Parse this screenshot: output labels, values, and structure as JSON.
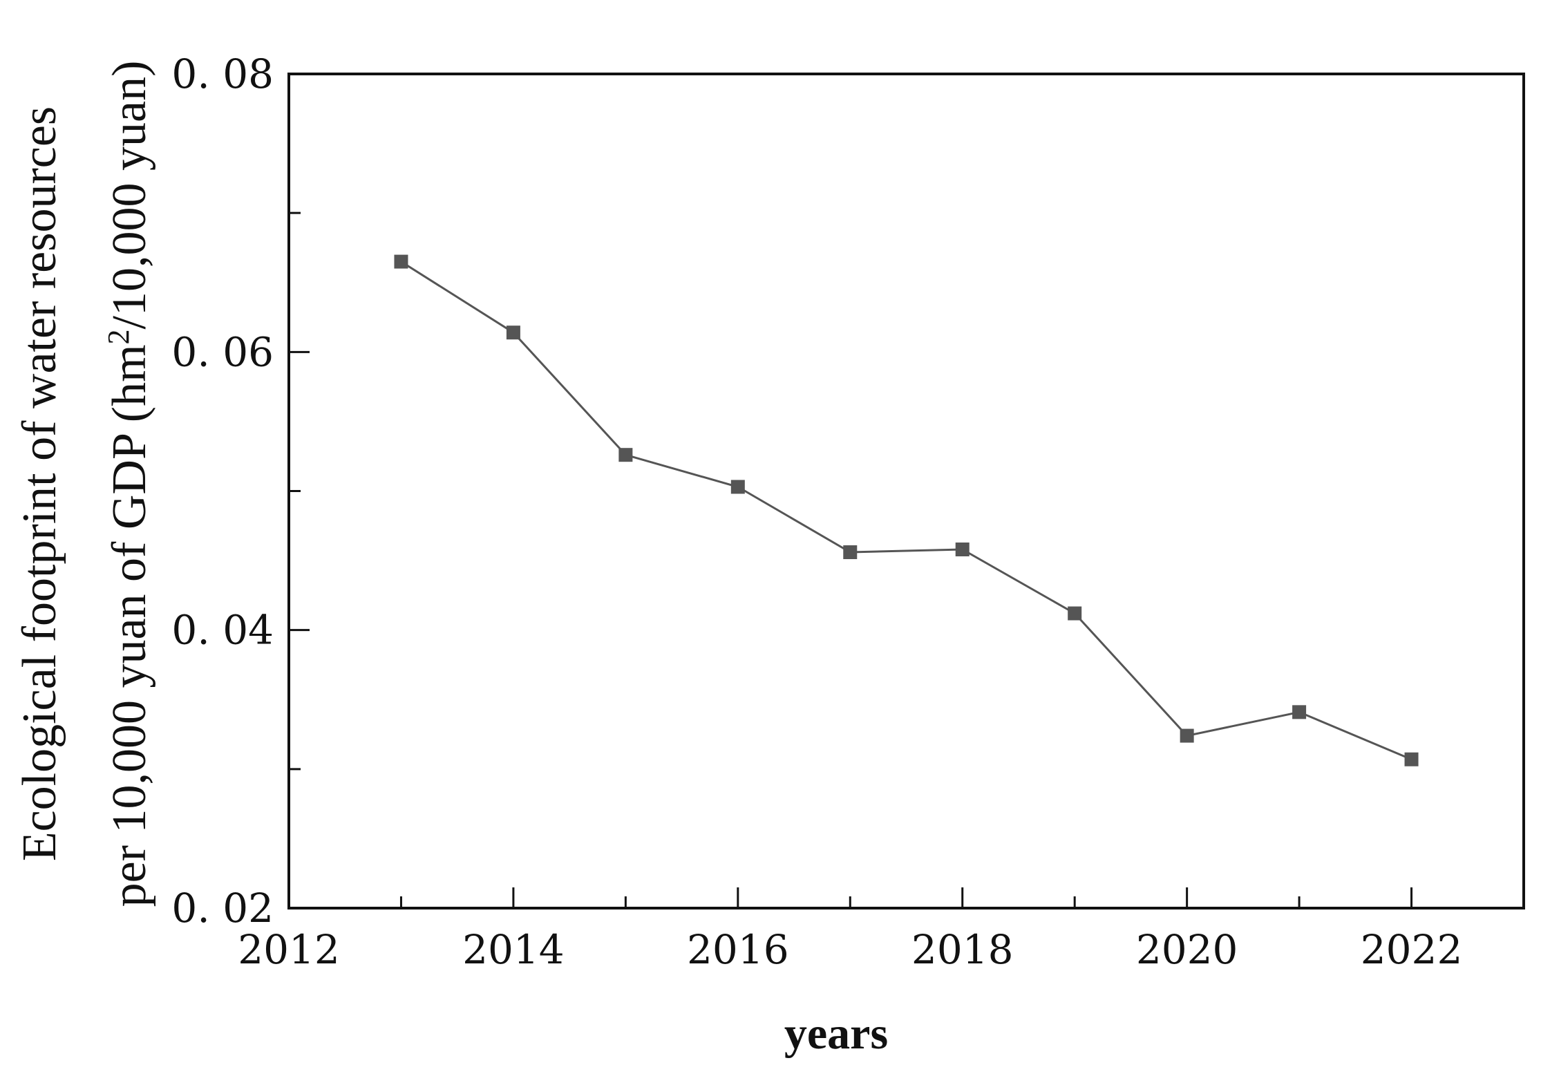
{
  "chart_data": {
    "type": "line",
    "title": "",
    "xlabel": "years",
    "ylabel": {
      "line1": "Ecological footprint of water resources",
      "line2_pre": "per 10,000 yuan of GDP (hm",
      "line2_sup": "2",
      "line2_post": "/10,000 yuan)"
    },
    "xlim": [
      2012,
      2023
    ],
    "ylim": [
      0.02,
      0.08
    ],
    "x_ticks": [
      "2012",
      "2014",
      "2016",
      "2018",
      "2020",
      "2022"
    ],
    "y_ticks": [
      "0.02",
      "0.04",
      "0.06",
      "0.08"
    ],
    "x": [
      2013,
      2014,
      2015,
      2016,
      2017,
      2018,
      2019,
      2020,
      2021,
      2022
    ],
    "series": [
      {
        "values": [
          0.0665,
          0.0614,
          0.0526,
          0.0503,
          0.0456,
          0.0458,
          0.0412,
          0.0324,
          0.0341,
          0.0307
        ],
        "color": "#555555",
        "marker": "square"
      }
    ],
    "grid": false,
    "legend": "none"
  }
}
